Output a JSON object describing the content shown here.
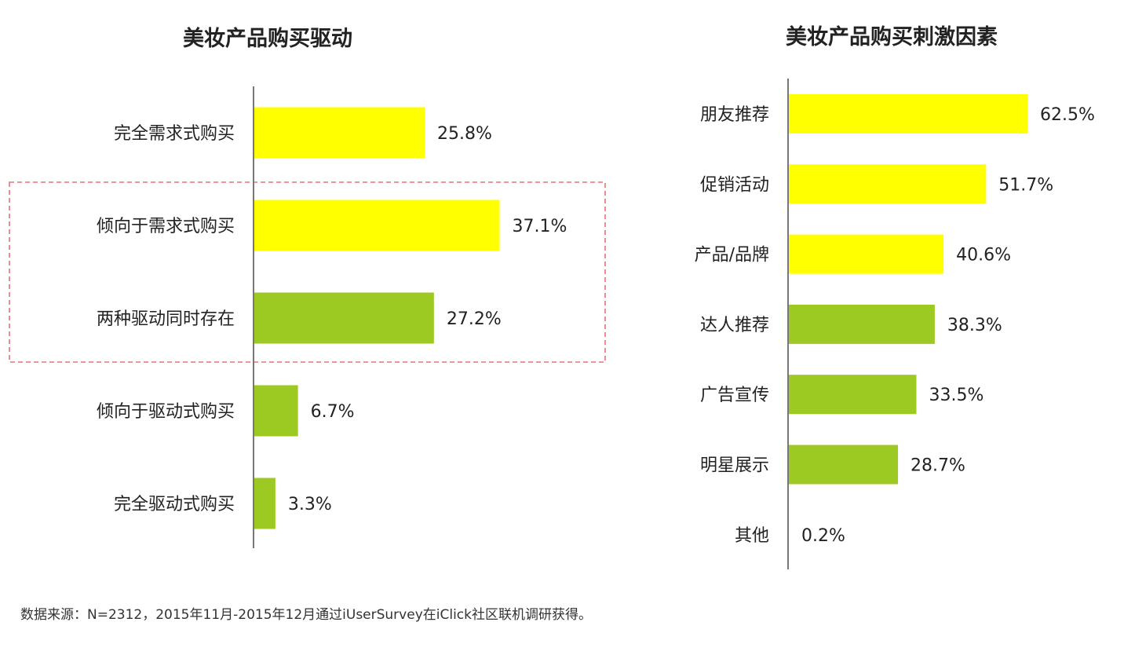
{
  "chart_data": [
    {
      "type": "bar",
      "orientation": "horizontal",
      "title": "美妆产品购买驱动",
      "categories": [
        "完全需求式购买",
        "倾向于需求式购买",
        "两种驱动同时存在",
        "倾向于驱动式购买",
        "完全驱动式购买"
      ],
      "values": [
        25.8,
        37.1,
        27.2,
        6.7,
        3.3
      ],
      "labels": [
        "25.8%",
        "37.1%",
        "27.2%",
        "6.7%",
        "3.3%"
      ],
      "colors": [
        "#ffff00",
        "#ffff00",
        "#9dc923",
        "#9dc923",
        "#9dc923"
      ],
      "unit": "%",
      "highlight_box": [
        "倾向于需求式购买",
        "两种驱动同时存在"
      ],
      "highlight_color": "#e8707a"
    },
    {
      "type": "bar",
      "orientation": "horizontal",
      "title": "美妆产品购买刺激因素",
      "categories": [
        "朋友推荐",
        "促销活动",
        "产品/品牌",
        "达人推荐",
        "广告宣传",
        "明星展示",
        "其他"
      ],
      "values": [
        62.5,
        51.7,
        40.6,
        38.3,
        33.5,
        28.7,
        0.2
      ],
      "labels": [
        "62.5%",
        "51.7%",
        "40.6%",
        "38.3%",
        "33.5%",
        "28.7%",
        "0.2%"
      ],
      "colors": [
        "#ffff00",
        "#ffff00",
        "#ffff00",
        "#9dc923",
        "#9dc923",
        "#9dc923",
        "#9dc923"
      ],
      "unit": "%"
    }
  ],
  "source_note": "数据来源：N=2312，2015年11月-2015年12月通过iUserSurvey在iClick社区联机调研获得。"
}
